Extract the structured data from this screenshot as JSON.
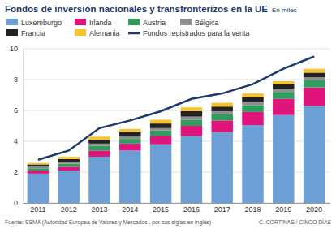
{
  "chart_data": {
    "type": "bar",
    "title": "Fondos de inversión nacionales y transfronterizos en la UE",
    "subtitle": "En miles",
    "source": "Fuente: ESMA (Autoridad Europea de Valores y Mercados , por sus siglas en inglés)",
    "credit": "C. CORTINAS / CINCO DÍAS",
    "categories": [
      "2011",
      "2012",
      "2013",
      "2014",
      "2015",
      "2016",
      "2017",
      "2018",
      "2019",
      "2020"
    ],
    "stacked": true,
    "grid": true,
    "legend": "top-left",
    "ylim": [
      0,
      10
    ],
    "yticks": [
      0,
      2,
      4,
      6,
      8,
      10
    ],
    "series": [
      {
        "name": "Luxemburgo",
        "type": "bar",
        "color": "#6b9fd6",
        "values": [
          1.9,
          2.1,
          3.0,
          3.4,
          3.8,
          4.35,
          4.6,
          5.05,
          5.7,
          6.3
        ]
      },
      {
        "name": "Irlanda",
        "type": "bar",
        "color": "#e0157c",
        "values": [
          0.2,
          0.25,
          0.4,
          0.45,
          0.55,
          0.65,
          0.75,
          0.85,
          1.05,
          1.2
        ]
      },
      {
        "name": "Austria",
        "type": "bar",
        "color": "#2f9e5c",
        "values": [
          0.15,
          0.2,
          0.3,
          0.3,
          0.35,
          0.4,
          0.4,
          0.45,
          0.45,
          0.45
        ]
      },
      {
        "name": "Bélgica",
        "type": "bar",
        "color": "#8e8e8e",
        "values": [
          0.1,
          0.1,
          0.15,
          0.15,
          0.15,
          0.2,
          0.2,
          0.2,
          0.2,
          0.2
        ]
      },
      {
        "name": "Francia",
        "type": "bar",
        "color": "#222222",
        "values": [
          0.15,
          0.2,
          0.25,
          0.3,
          0.3,
          0.35,
          0.3,
          0.3,
          0.3,
          0.3
        ]
      },
      {
        "name": "Alemania",
        "type": "bar",
        "color": "#f5c430",
        "values": [
          0.1,
          0.15,
          0.2,
          0.2,
          0.25,
          0.25,
          0.25,
          0.25,
          0.2,
          0.25
        ]
      },
      {
        "name": "Fondos registrados para la venta",
        "type": "line",
        "color": "#1d3a6c",
        "line_style": "solid",
        "values": [
          2.8,
          3.4,
          4.85,
          5.35,
          5.95,
          6.75,
          7.1,
          7.7,
          8.7,
          9.5
        ]
      }
    ]
  }
}
